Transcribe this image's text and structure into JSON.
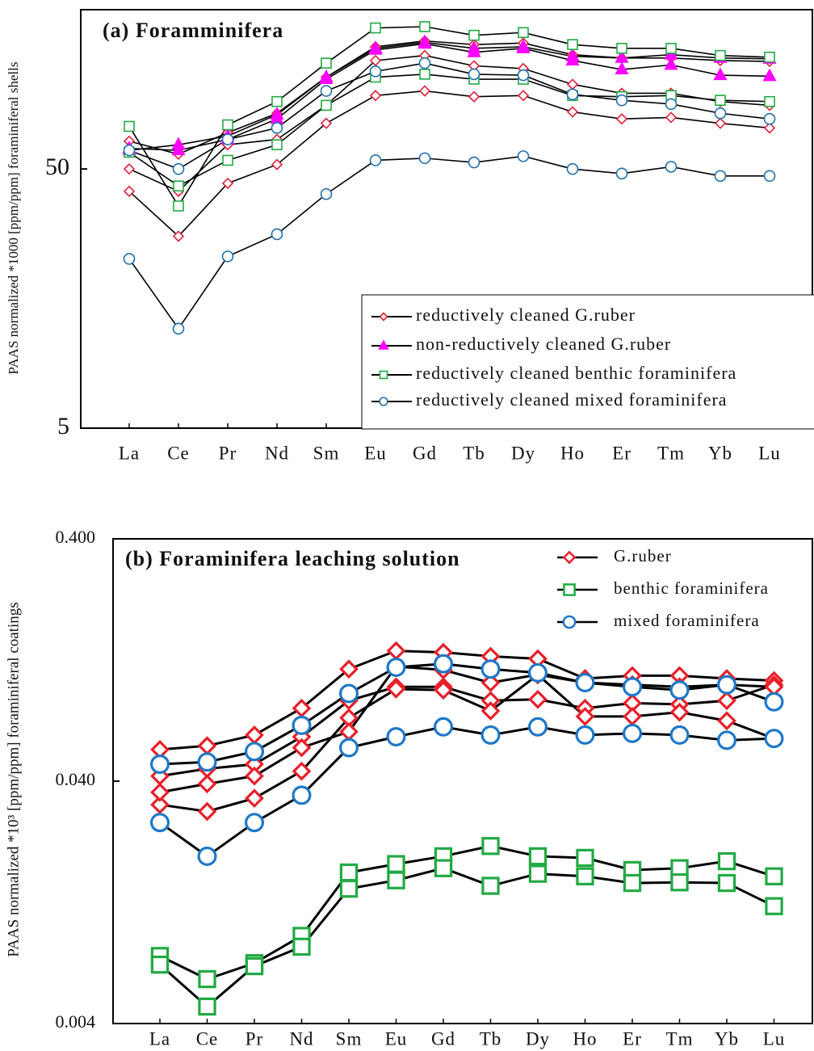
{
  "chart_data": [
    {
      "type": "line",
      "title": "(a) Foramminifera",
      "y_label": "PAAS normalized *1000 [ppm/ppm] foraminiferal shells",
      "categories": [
        "La",
        "Ce",
        "Pr",
        "Nd",
        "Sm",
        "Eu",
        "Gd",
        "Tb",
        "Dy",
        "Ho",
        "Er",
        "Tm",
        "Yb",
        "Lu"
      ],
      "log_scale": true,
      "ylim": [
        5,
        200
      ],
      "yticks": [
        5,
        50
      ],
      "line_color": "#000000",
      "legend": "bottom-right-boxed",
      "series": [
        {
          "name": "reductively cleaned G.ruber",
          "color": "#e0203a",
          "marker": "diamond",
          "values": [
            41,
            27.5,
            44,
            52,
            75,
            96,
            100,
            95,
            96,
            83,
            78,
            79,
            75,
            72
          ]
        },
        {
          "name": "reductively cleaned G.ruber",
          "color": "#e0203a",
          "marker": "diamond",
          "values": [
            50,
            41,
            62,
            65,
            88,
            131,
            137,
            125,
            122,
            106,
            98,
            98,
            91,
            88
          ]
        },
        {
          "name": "reductively cleaned G.ruber",
          "color": "#e0203a",
          "marker": "diamond",
          "values": [
            64,
            57,
            69,
            82,
            113,
            148,
            156,
            151,
            153,
            138,
            134,
            134,
            131,
            130
          ]
        },
        {
          "name": "non-reductively cleaned G.ruber",
          "color": "#ff00ff",
          "marker": "triangle",
          "values": [
            59,
            62,
            67,
            81,
            113,
            146,
            154,
            146,
            148,
            136,
            134,
            138,
            134,
            133
          ]
        },
        {
          "name": "non-reductively cleaned G.ruber",
          "color": "#ff00ff",
          "marker": "triangle",
          "values": [
            60,
            59,
            65,
            78,
            111,
            144,
            152,
            141,
            146,
            131,
            121,
            126,
            115,
            114
          ]
        },
        {
          "name": "reductively cleaned benthic foraminifera",
          "color": "#22aa44",
          "marker": "square",
          "values": [
            73,
            36,
            74,
            91,
            128,
            175,
            177,
            164,
            168,
            151,
            146,
            146,
            137,
            135
          ]
        },
        {
          "name": "reductively cleaned benthic foraminifera",
          "color": "#22aa44",
          "marker": "square",
          "values": [
            58,
            43,
            54,
            62,
            88,
            113,
            116,
            111,
            111,
            96,
            95,
            96,
            92,
            91
          ]
        },
        {
          "name": "reductively cleaned mixed foraminifera",
          "color": "#1f6fb0",
          "marker": "circle",
          "values": [
            59,
            50,
            65,
            72,
            100,
            119,
            128,
            116,
            115,
            97,
            92,
            89,
            82,
            78
          ]
        },
        {
          "name": "reductively cleaned mixed foraminifera",
          "color": "#1f6fb0",
          "marker": "circle",
          "values": [
            22.5,
            12.1,
            23,
            28,
            40,
            54,
            55,
            53,
            56,
            50,
            48,
            51,
            47,
            47
          ]
        }
      ]
    },
    {
      "type": "line",
      "title": "(b) Foraminifera leaching solution",
      "y_label": "PAAS normalized *10³ [ppm/ppm] foraminiferal coatings",
      "categories": [
        "La",
        "Ce",
        "Pr",
        "Nd",
        "Sm",
        "Eu",
        "Gd",
        "Tb",
        "Dy",
        "Ho",
        "Er",
        "Tm",
        "Yb",
        "Lu"
      ],
      "log_scale": true,
      "ylim": [
        0.004,
        0.4
      ],
      "yticks": [
        {
          "value": 0.004,
          "label": "0.004"
        },
        {
          "value": 0.04,
          "label": "0.040"
        },
        {
          "value": 0.4,
          "label": "0.400"
        }
      ],
      "line_color": "#000000",
      "legend": "top-right",
      "series": [
        {
          "name": "G.ruber",
          "color": "#e8202a",
          "marker": "diamond",
          "values": [
            0.054,
            0.056,
            0.062,
            0.08,
            0.116,
            0.138,
            0.136,
            0.131,
            0.128,
            0.106,
            0.109,
            0.109,
            0.106,
            0.104
          ]
        },
        {
          "name": "G.ruber",
          "color": "#e8202a",
          "marker": "diamond",
          "values": [
            0.042,
            0.045,
            0.047,
            0.061,
            0.086,
            0.098,
            0.098,
            0.086,
            0.087,
            0.08,
            0.084,
            0.083,
            0.086,
            0.1
          ]
        },
        {
          "name": "G.ruber",
          "color": "#e8202a",
          "marker": "diamond",
          "values": [
            0.032,
            0.03,
            0.034,
            0.044,
            0.073,
            0.096,
            0.095,
            0.078,
            0.11,
            0.074,
            0.074,
            0.077,
            0.071,
            0.06
          ]
        },
        {
          "name": "G.ruber",
          "color": "#e8202a",
          "marker": "diamond",
          "values": [
            0.036,
            0.039,
            0.042,
            0.055,
            0.064,
            0.119,
            0.115,
            0.102,
            0.11,
            0.102,
            0.1,
            0.098,
            0.1,
            0.098
          ]
        },
        {
          "name": "benthic foraminifera",
          "color": "#22aa44",
          "marker": "square",
          "values": [
            0.0076,
            0.0061,
            0.0071,
            0.0092,
            0.0168,
            0.0182,
            0.0196,
            0.0216,
            0.0196,
            0.0193,
            0.0172,
            0.0175,
            0.0187,
            0.0162
          ]
        },
        {
          "name": "benthic foraminifera",
          "color": "#22aa44",
          "marker": "square",
          "values": [
            0.007,
            0.0047,
            0.0069,
            0.0083,
            0.0144,
            0.0156,
            0.0175,
            0.0148,
            0.0166,
            0.0162,
            0.0152,
            0.0153,
            0.0152,
            0.0122
          ]
        },
        {
          "name": "mixed foraminifera",
          "color": "#1e78c8",
          "marker": "circle",
          "values": [
            0.047,
            0.048,
            0.053,
            0.068,
            0.092,
            0.118,
            0.122,
            0.116,
            0.112,
            0.102,
            0.098,
            0.095,
            0.1,
            0.085
          ]
        },
        {
          "name": "mixed foraminifera",
          "color": "#1e78c8",
          "marker": "circle",
          "values": [
            0.027,
            0.0196,
            0.027,
            0.035,
            0.055,
            0.061,
            0.067,
            0.062,
            0.067,
            0.062,
            0.063,
            0.062,
            0.059,
            0.06
          ]
        }
      ]
    }
  ]
}
